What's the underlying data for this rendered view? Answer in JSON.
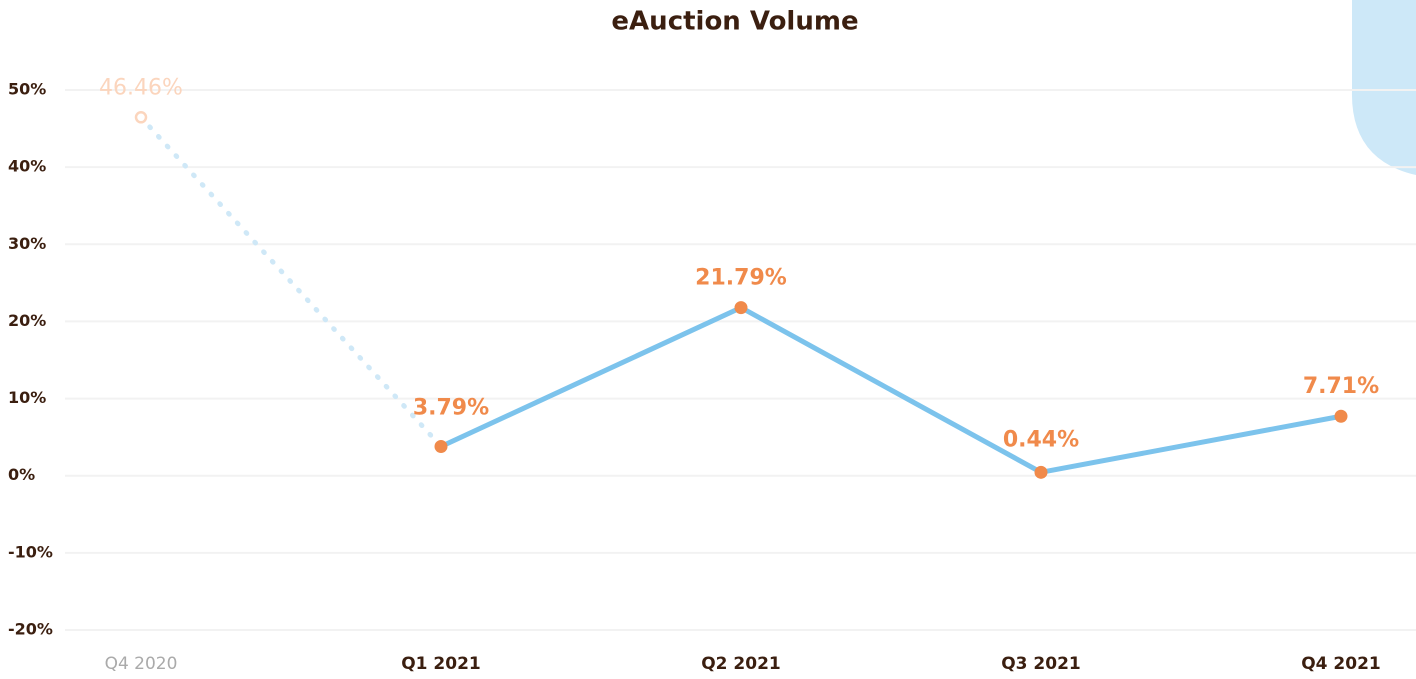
{
  "chart_data": {
    "type": "line",
    "title": "eAuction Volume",
    "categories": [
      "Q4 2020",
      "Q1 2021",
      "Q2 2021",
      "Q3 2021",
      "Q4 2021"
    ],
    "values": [
      46.46,
      3.79,
      21.79,
      0.44,
      7.71
    ],
    "value_labels": [
      "46.46%",
      "3.79%",
      "21.79%",
      "0.44%",
      "7.71%"
    ],
    "color": "#7cc3ec",
    "marker_color": "#f08a4b",
    "ylim": [
      -20,
      50
    ],
    "yticks": [
      {
        "value": -20,
        "label": "-20%"
      },
      {
        "value": -10,
        "label": "-10%"
      },
      {
        "value": 0,
        "label": "0%"
      },
      {
        "value": 10,
        "label": "10%"
      },
      {
        "value": 20,
        "label": "20%"
      },
      {
        "value": 30,
        "label": "30%"
      },
      {
        "value": 40,
        "label": "40%"
      },
      {
        "value": 50,
        "label": "50%"
      }
    ],
    "grid": true
  }
}
